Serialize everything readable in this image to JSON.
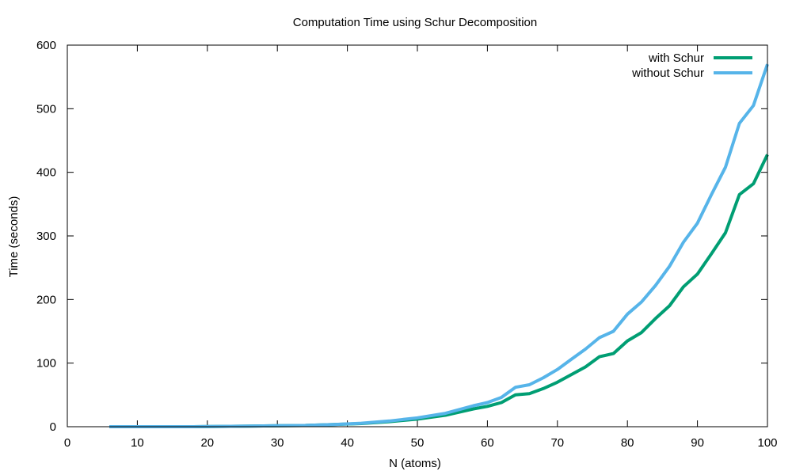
{
  "chart_data": {
    "type": "line",
    "title": "Computation Time using Schur Decomposition",
    "xlabel": "N (atoms)",
    "ylabel": "Time (seconds)",
    "xlim": [
      0,
      100
    ],
    "ylim": [
      0,
      600
    ],
    "x_ticks": [
      0,
      10,
      20,
      30,
      40,
      50,
      60,
      70,
      80,
      90,
      100
    ],
    "y_ticks": [
      0,
      100,
      200,
      300,
      400,
      500,
      600
    ],
    "grid": false,
    "legend_position": "top-right",
    "series": [
      {
        "name": "with Schur",
        "color": "#009e73",
        "x": [
          6,
          10,
          14,
          18,
          22,
          26,
          30,
          34,
          38,
          42,
          46,
          50,
          54,
          58,
          60,
          62,
          64,
          66,
          68,
          70,
          72,
          74,
          76,
          78,
          80,
          82,
          84,
          86,
          88,
          90,
          92,
          94,
          96,
          98,
          100
        ],
        "y": [
          0,
          0,
          0,
          0,
          0.5,
          1,
          1.5,
          2,
          3.5,
          5,
          8,
          12,
          18,
          28,
          32,
          38,
          50,
          52,
          60,
          70,
          82,
          94,
          110,
          115,
          135,
          148,
          170,
          190,
          220,
          240,
          272,
          305,
          365,
          382,
          428
        ]
      },
      {
        "name": "without Schur",
        "color": "#56b4e9",
        "x": [
          6,
          10,
          14,
          18,
          22,
          26,
          30,
          34,
          38,
          42,
          46,
          50,
          54,
          58,
          60,
          62,
          64,
          66,
          68,
          70,
          72,
          74,
          76,
          78,
          80,
          82,
          84,
          86,
          88,
          90,
          92,
          94,
          96,
          98,
          100
        ],
        "y": [
          0,
          0,
          0,
          0,
          0.5,
          1,
          1.5,
          2,
          3.5,
          5.5,
          9,
          14,
          21,
          33,
          38,
          46,
          62,
          66,
          77,
          90,
          106,
          122,
          140,
          150,
          177,
          196,
          222,
          252,
          290,
          320,
          365,
          408,
          477,
          505,
          570
        ]
      }
    ]
  }
}
